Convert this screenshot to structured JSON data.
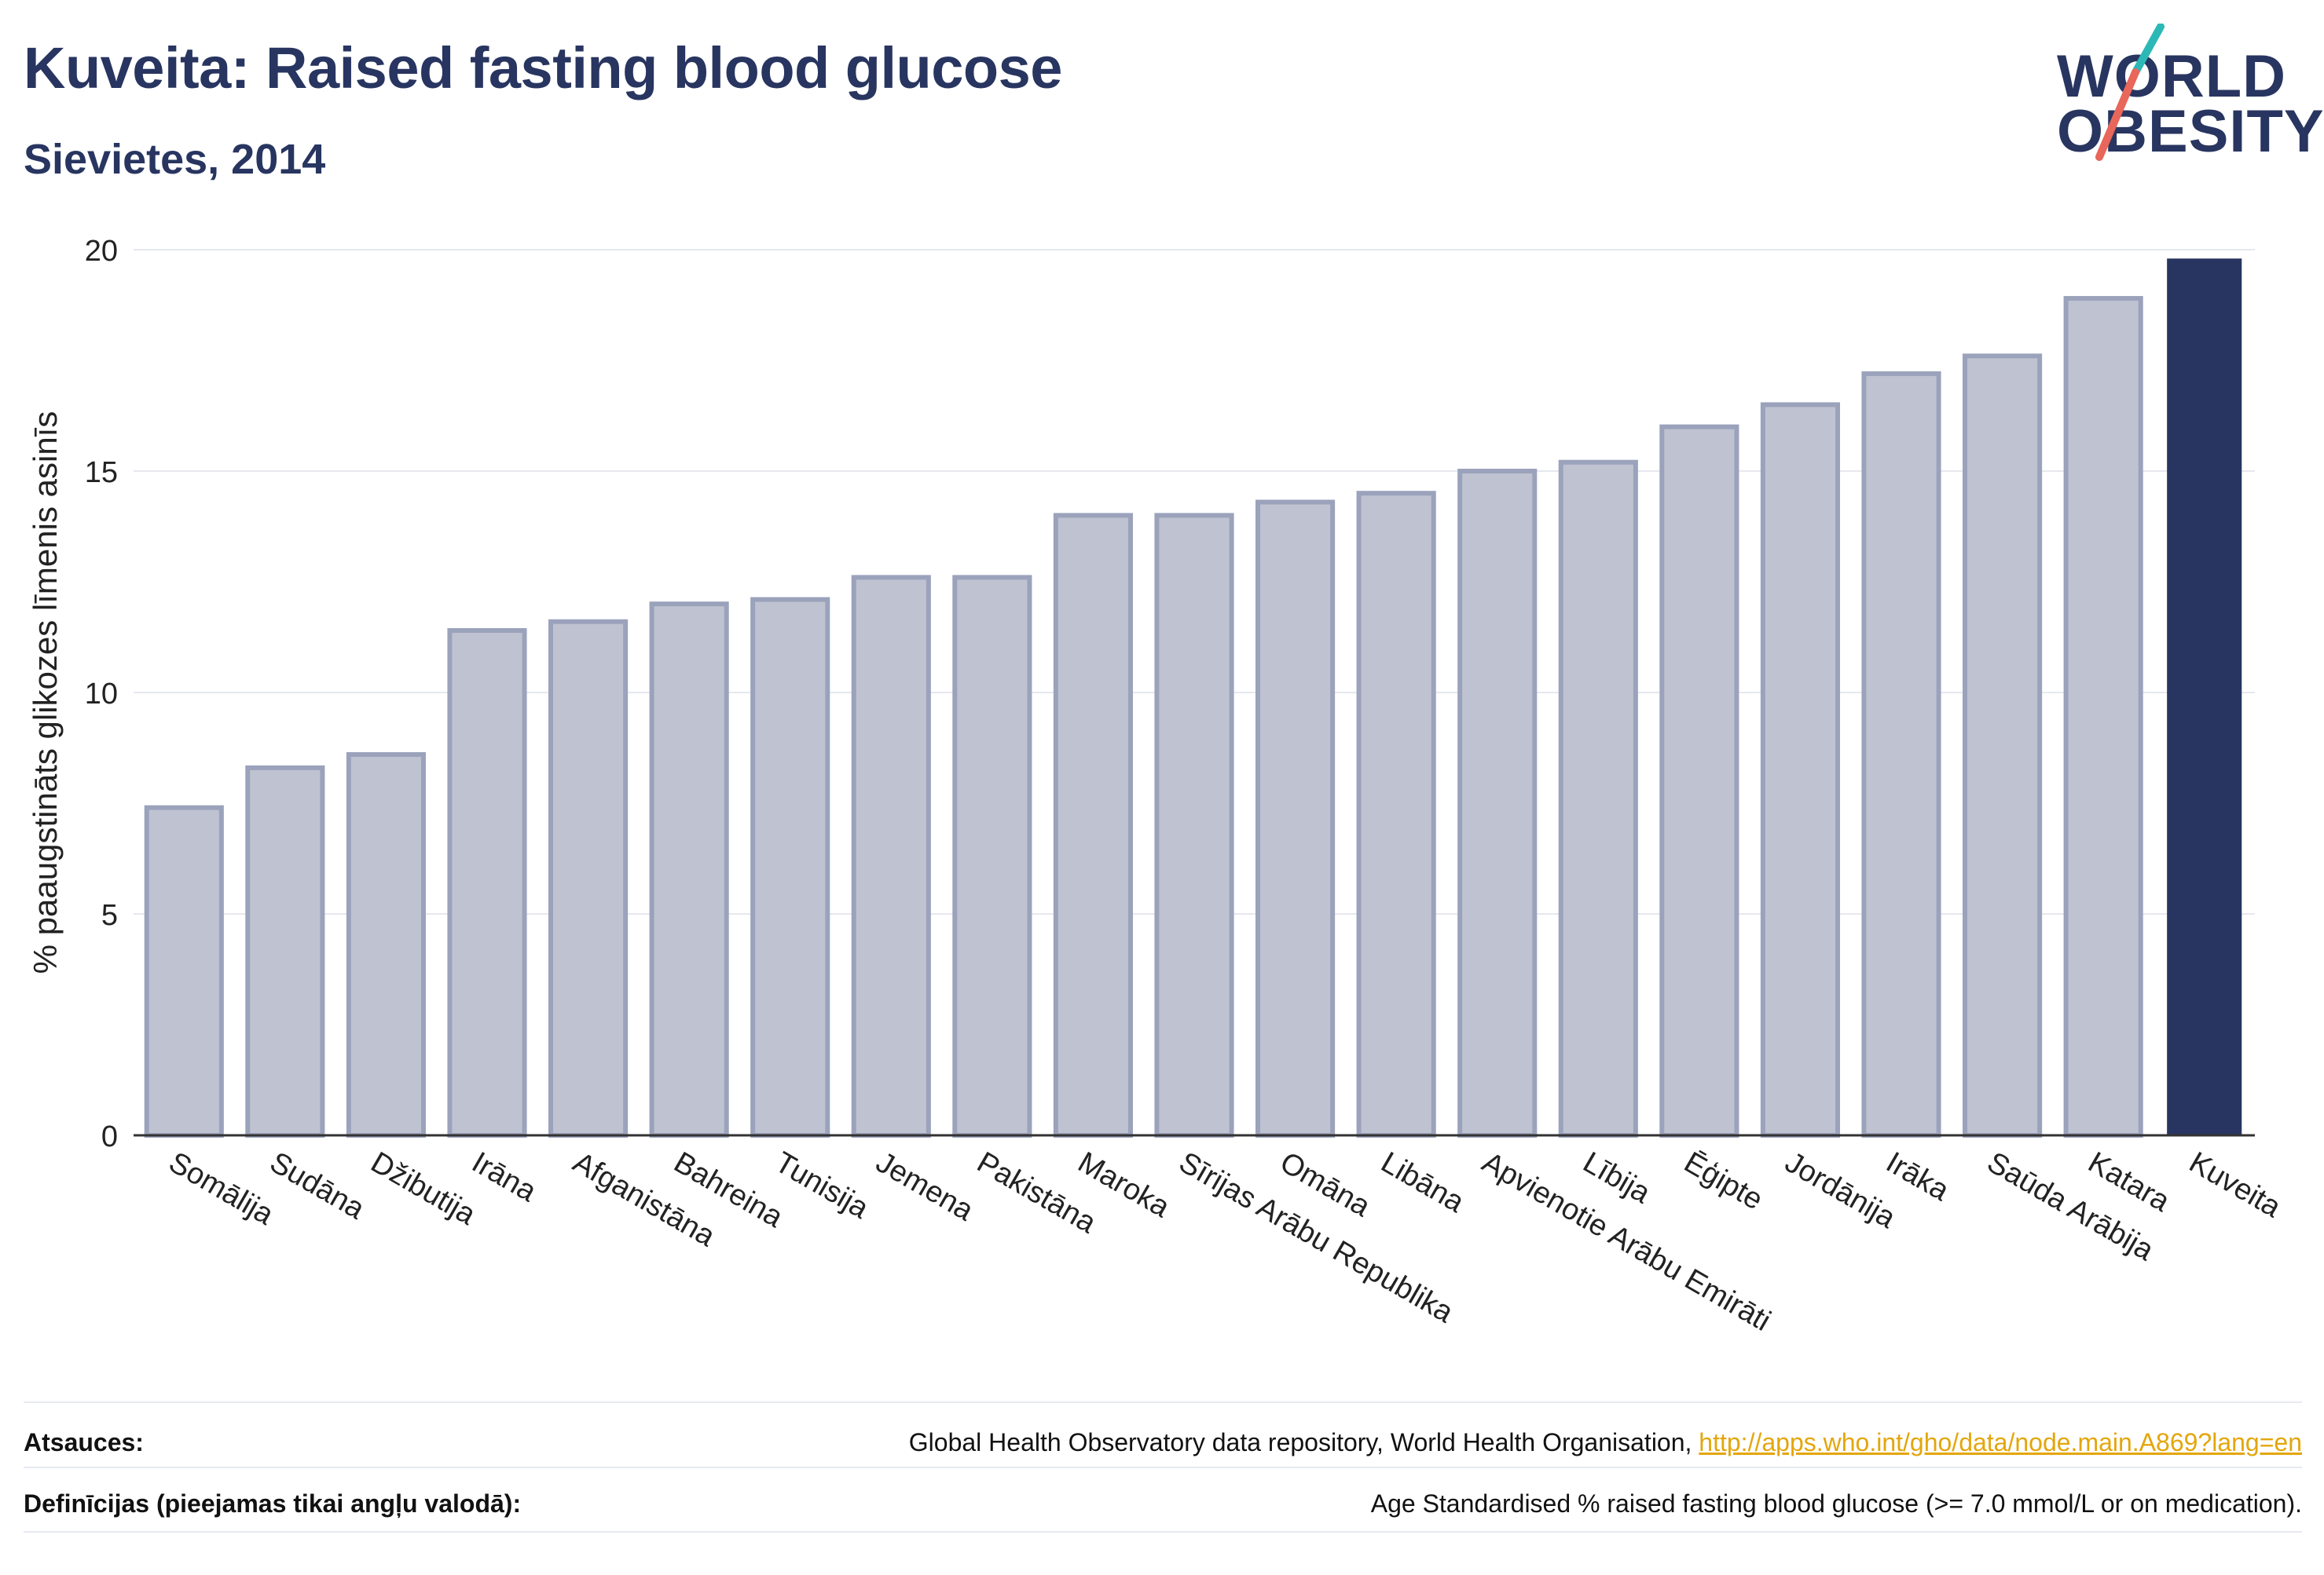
{
  "header": {
    "title": "Kuveita: Raised fasting blood glucose",
    "subtitle": "Sievietes, 2014"
  },
  "logo": {
    "line1": "WORLD",
    "line2": "OBESITY",
    "colors": {
      "text": "#283560",
      "slash_top": "#2cb8b6",
      "slash_bottom": "#e8665a"
    }
  },
  "chart_data": {
    "type": "bar",
    "ylabel": "% paaugstināts glikozes līmenis asinīs",
    "ylim": [
      0,
      20
    ],
    "yticks": [
      0,
      5,
      10,
      15,
      20
    ],
    "grid": true,
    "categories": [
      "Somālija",
      "Sudāna",
      "Džibutija",
      "Irāna",
      "Afganistāna",
      "Bahreina",
      "Tunisija",
      "Jemena",
      "Pakistāna",
      "Maroka",
      "Sīrijas Arābu Republika",
      "Omāna",
      "Libāna",
      "Apvienotie Arābu Emirāti",
      "Lībija",
      "Ēģipte",
      "Jordānija",
      "Irāka",
      "Saūda Arābija",
      "Katara",
      "Kuveita"
    ],
    "values": [
      7.4,
      8.3,
      8.6,
      11.4,
      11.6,
      12.0,
      12.1,
      12.6,
      12.6,
      14.0,
      14.0,
      14.3,
      14.5,
      15.0,
      15.2,
      16.0,
      16.5,
      17.2,
      17.6,
      18.9,
      19.8
    ],
    "highlight": "Kuveita",
    "colors": {
      "bar": "#bfc3d1",
      "bar_border": "#9ba2bb",
      "highlight": "#283560",
      "grid": "#e6e8ef",
      "axis": "#333333"
    }
  },
  "footer": {
    "sources_label": "Atsauces:",
    "sources_text": "Global Health Observatory data repository, World Health Organisation, ",
    "sources_link": "http://apps.who.int/gho/data/node.main.A869?lang=en",
    "definitions_label": "Definīcijas (pieejamas tikai angļu valodā):",
    "definitions_text": "Age Standardised % raised fasting blood glucose (>= 7.0 mmol/L or on medication)."
  }
}
